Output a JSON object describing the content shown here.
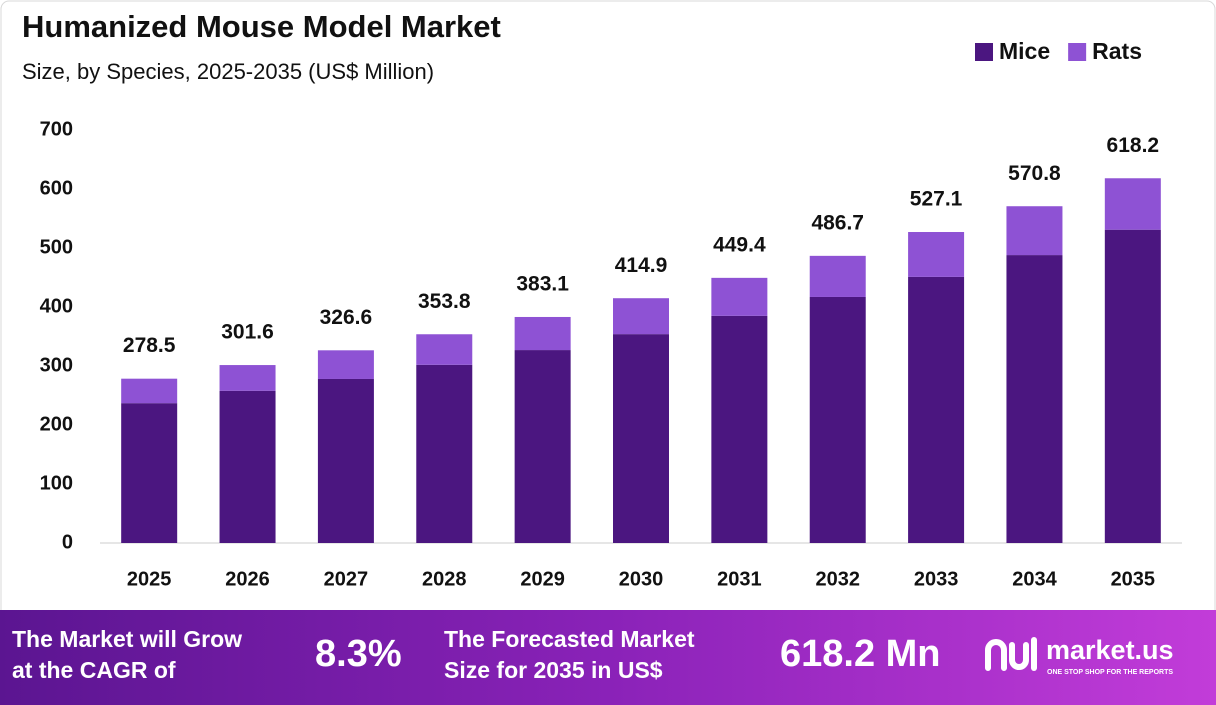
{
  "chart_data": {
    "type": "stacked_bar",
    "title": "Humanized Mouse Model Market",
    "subtitle": "Size, by Species, 2025-2035 (US$ Million)",
    "categories": [
      "2025",
      "2026",
      "2027",
      "2028",
      "2029",
      "2030",
      "2031",
      "2032",
      "2033",
      "2034",
      "2035"
    ],
    "series": [
      {
        "name": "Mice",
        "color": "#4b1680",
        "values": [
          237,
          258,
          278,
          302,
          327,
          354,
          385,
          417,
          451,
          488,
          531
        ]
      },
      {
        "name": "Rats",
        "color": "#8e52d4",
        "values": [
          41.5,
          43.6,
          48.6,
          51.8,
          56.1,
          60.9,
          64.4,
          69.7,
          76.1,
          82.8,
          87.2
        ]
      }
    ],
    "totals": [
      278.5,
      301.6,
      326.6,
      353.8,
      383.1,
      414.9,
      449.4,
      486.7,
      527.1,
      570.8,
      618.2
    ],
    "ylim": [
      0,
      700
    ],
    "yticks": [
      0,
      100,
      200,
      300,
      400,
      500,
      600,
      700
    ],
    "grid": false,
    "legend": "top-right"
  },
  "footer": {
    "cagr_text": [
      "The Market will Grow",
      "at the CAGR of"
    ],
    "cagr_value": "8.3%",
    "forecast_text": [
      "The Forecasted Market",
      "Size for 2035 in US$"
    ],
    "forecast_value": "618.2 Mn",
    "brand": "market.us",
    "tagline": "ONE STOP SHOP FOR THE REPORTS"
  }
}
